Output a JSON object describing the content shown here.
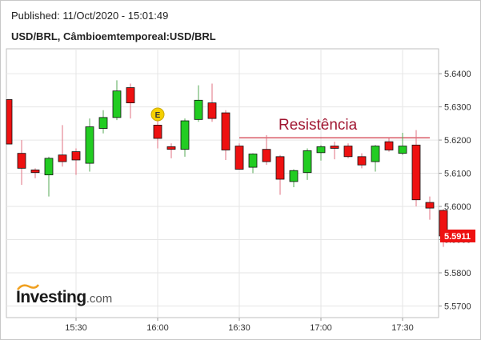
{
  "header": {
    "published": "Published: 11/Oct/2020 - 15:01:49",
    "pair_title": "USD/BRL, Câmbioemtemporeal:USD/BRL"
  },
  "logo": {
    "main": "Investing",
    "domain": ".com"
  },
  "colors": {
    "up": "#22cc22",
    "down": "#ee1111",
    "resistance": "#cc2233",
    "grid": "#e6e6e6"
  },
  "chart_data": {
    "type": "candlestick",
    "title": "USD/BRL, Câmbioemtemporeal:USD/BRL",
    "ylim": [
      5.5665,
      5.6475
    ],
    "y_ticks": [
      5.57,
      5.58,
      5.59,
      5.6,
      5.61,
      5.62,
      5.63,
      5.64
    ],
    "y_tick_labels": [
      "5.5700",
      "5.5800",
      "5.5900",
      "5.6000",
      "5.6100",
      "5.6200",
      "5.6300",
      "5.6400"
    ],
    "x_ticks": [
      "15:30",
      "16:00",
      "16:30",
      "17:00",
      "17:30"
    ],
    "grid": true,
    "last_price": "5.5911",
    "annotation": {
      "text": "Resistência",
      "price": 5.6207,
      "from": "16:30",
      "to": "17:40"
    },
    "event_marker": {
      "label": "E",
      "time": "16:00"
    },
    "candles": [
      {
        "t": "15:05",
        "o": 5.6322,
        "h": 5.6322,
        "l": 5.6188,
        "c": 5.6188
      },
      {
        "t": "15:10",
        "o": 5.616,
        "h": 5.62,
        "l": 5.6065,
        "c": 5.6115
      },
      {
        "t": "15:15",
        "o": 5.611,
        "h": 5.6115,
        "l": 5.6085,
        "c": 5.6102
      },
      {
        "t": "15:20",
        "o": 5.6095,
        "h": 5.615,
        "l": 5.603,
        "c": 5.6145
      },
      {
        "t": "15:25",
        "o": 5.6155,
        "h": 5.6245,
        "l": 5.612,
        "c": 5.6135
      },
      {
        "t": "15:30",
        "o": 5.6165,
        "h": 5.6175,
        "l": 5.6095,
        "c": 5.614
      },
      {
        "t": "15:35",
        "o": 5.613,
        "h": 5.6265,
        "l": 5.6105,
        "c": 5.624
      },
      {
        "t": "15:40",
        "o": 5.6235,
        "h": 5.629,
        "l": 5.622,
        "c": 5.6268
      },
      {
        "t": "15:45",
        "o": 5.6268,
        "h": 5.638,
        "l": 5.626,
        "c": 5.6348
      },
      {
        "t": "15:50",
        "o": 5.6358,
        "h": 5.637,
        "l": 5.6265,
        "c": 5.6312
      },
      {
        "t": "16:00",
        "o": 5.6245,
        "h": 5.6262,
        "l": 5.6175,
        "c": 5.6205
      },
      {
        "t": "16:05",
        "o": 5.618,
        "h": 5.619,
        "l": 5.6145,
        "c": 5.6172
      },
      {
        "t": "16:10",
        "o": 5.6172,
        "h": 5.6265,
        "l": 5.615,
        "c": 5.6258
      },
      {
        "t": "16:15",
        "o": 5.6262,
        "h": 5.6365,
        "l": 5.6255,
        "c": 5.632
      },
      {
        "t": "16:20",
        "o": 5.6312,
        "h": 5.637,
        "l": 5.6255,
        "c": 5.6265
      },
      {
        "t": "16:25",
        "o": 5.6282,
        "h": 5.629,
        "l": 5.614,
        "c": 5.617
      },
      {
        "t": "16:30",
        "o": 5.6182,
        "h": 5.619,
        "l": 5.611,
        "c": 5.6112
      },
      {
        "t": "16:35",
        "o": 5.6118,
        "h": 5.616,
        "l": 5.61,
        "c": 5.6158
      },
      {
        "t": "16:40",
        "o": 5.6172,
        "h": 5.6215,
        "l": 5.6125,
        "c": 5.6135
      },
      {
        "t": "16:45",
        "o": 5.615,
        "h": 5.6155,
        "l": 5.6035,
        "c": 5.6082
      },
      {
        "t": "16:50",
        "o": 5.6075,
        "h": 5.6112,
        "l": 5.6058,
        "c": 5.6108
      },
      {
        "t": "16:55",
        "o": 5.6102,
        "h": 5.6175,
        "l": 5.608,
        "c": 5.6168
      },
      {
        "t": "17:00",
        "o": 5.6162,
        "h": 5.6185,
        "l": 5.6138,
        "c": 5.618
      },
      {
        "t": "17:05",
        "o": 5.6182,
        "h": 5.6195,
        "l": 5.6142,
        "c": 5.6175
      },
      {
        "t": "17:10",
        "o": 5.6182,
        "h": 5.619,
        "l": 5.6145,
        "c": 5.615
      },
      {
        "t": "17:15",
        "o": 5.615,
        "h": 5.616,
        "l": 5.6115,
        "c": 5.6125
      },
      {
        "t": "17:20",
        "o": 5.6135,
        "h": 5.6185,
        "l": 5.6105,
        "c": 5.6182
      },
      {
        "t": "17:25",
        "o": 5.6195,
        "h": 5.6205,
        "l": 5.6165,
        "c": 5.617
      },
      {
        "t": "17:30",
        "o": 5.616,
        "h": 5.6222,
        "l": 5.6155,
        "c": 5.6182
      },
      {
        "t": "17:35",
        "o": 5.6185,
        "h": 5.623,
        "l": 5.6,
        "c": 5.602
      },
      {
        "t": "17:40",
        "o": 5.6012,
        "h": 5.603,
        "l": 5.596,
        "c": 5.5995
      },
      {
        "t": "17:45",
        "o": 5.5988,
        "h": 5.5992,
        "l": 5.5878,
        "c": 5.5911
      }
    ]
  }
}
